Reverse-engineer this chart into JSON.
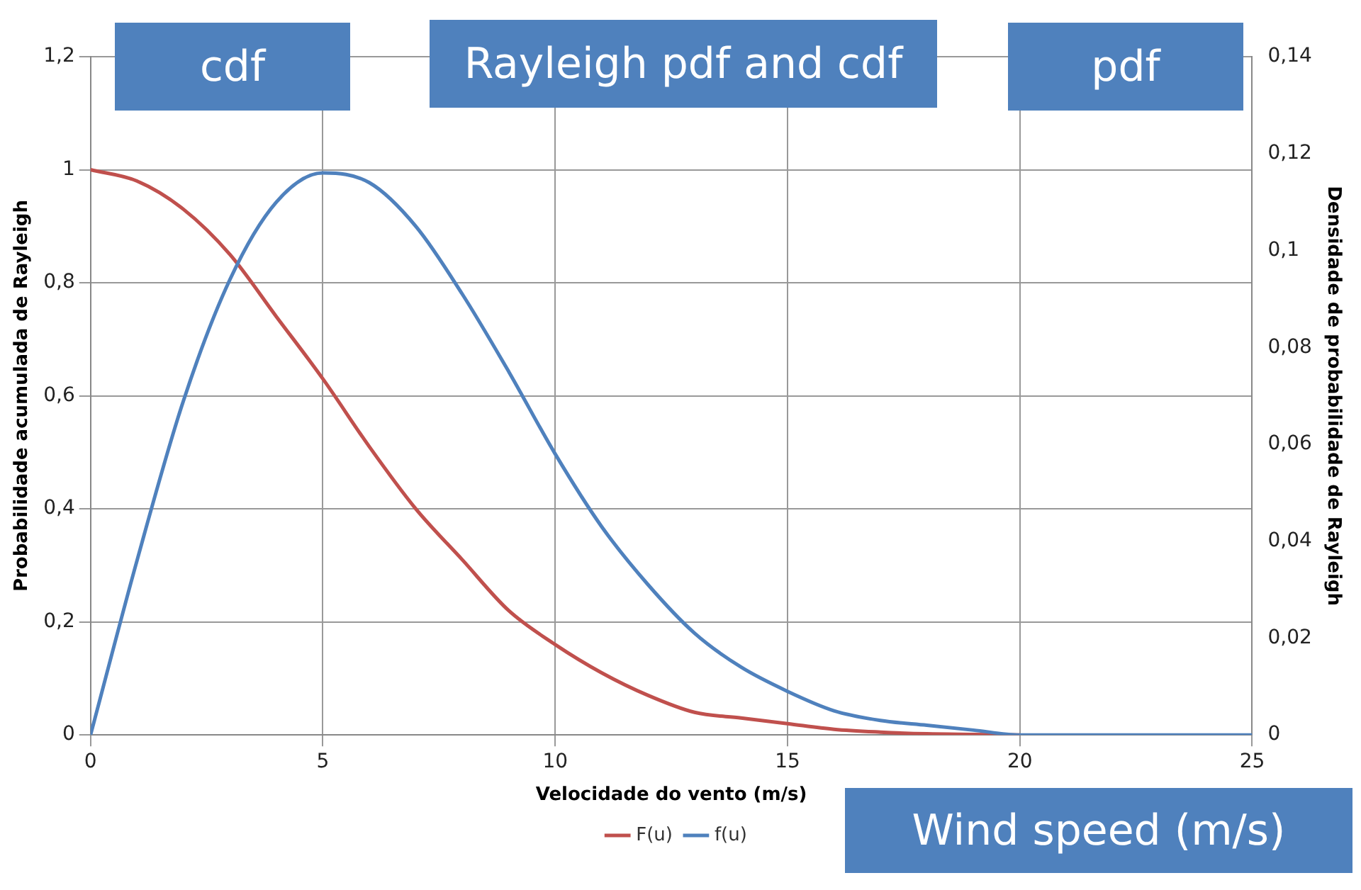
{
  "chart_data": {
    "type": "line",
    "title": "Rayleigh pdf and cdf",
    "xlabel": "Velocidade do vento (m/s)",
    "ylabel": "Probabilidade acumulada de Rayleigh",
    "y2label": "Densidade de probabilidade de Rayleigh",
    "annotations": [
      "cdf",
      "pdf",
      "Wind speed (m/s)"
    ],
    "x": [
      0,
      1,
      2,
      3,
      4,
      5,
      6,
      7,
      8,
      9,
      10,
      11,
      12,
      13,
      14,
      15,
      16,
      17,
      18,
      19,
      20,
      21,
      22,
      23,
      24,
      25
    ],
    "series": [
      {
        "name": "F(u)",
        "color": "#c0504d",
        "values": [
          1,
          0.98,
          0.93,
          0.85,
          0.74,
          0.63,
          0.51,
          0.4,
          0.31,
          0.22,
          0.16,
          0.11,
          0.07,
          0.04,
          0.03,
          0.02,
          0.01,
          0.005,
          0.002,
          0.001,
          0,
          null,
          null,
          null,
          null,
          null
        ]
      },
      {
        "name": "f(u)",
        "color": "#4f81bd",
        "axis": "y2",
        "values": [
          0,
          0.036,
          0.069,
          0.094,
          0.11,
          0.116,
          0.114,
          0.105,
          0.091,
          0.075,
          0.058,
          0.043,
          0.031,
          0.021,
          0.014,
          0.009,
          0.005,
          0.003,
          0.002,
          0.001,
          0,
          0,
          0,
          0,
          0,
          0
        ]
      }
    ],
    "xlim": [
      0,
      25
    ],
    "xticks": [
      0,
      5,
      10,
      15,
      20,
      25
    ],
    "ylim": [
      0,
      1.2
    ],
    "yticks": [
      0,
      {
        "value": 0.2,
        "label": "0,2"
      },
      {
        "value": 0.4,
        "label": "0,4"
      },
      {
        "value": 0.6,
        "label": "0,6"
      },
      {
        "value": 0.8,
        "label": "0,8"
      },
      1,
      {
        "value": 1.2,
        "label": "1,2"
      }
    ],
    "y2lim": [
      0,
      0.14
    ],
    "y2ticks": [
      0,
      {
        "value": 0.02,
        "label": "0,02"
      },
      {
        "value": 0.04,
        "label": "0,04"
      },
      {
        "value": 0.06,
        "label": "0,06"
      },
      {
        "value": 0.08,
        "label": "0,08"
      },
      {
        "value": 0.1,
        "label": "0,1"
      },
      {
        "value": 0.12,
        "label": "0,12"
      },
      {
        "value": 0.14,
        "label": "0,14"
      }
    ],
    "grid": true,
    "legend": "bottom",
    "marker": "none",
    "line_style": "solid"
  }
}
